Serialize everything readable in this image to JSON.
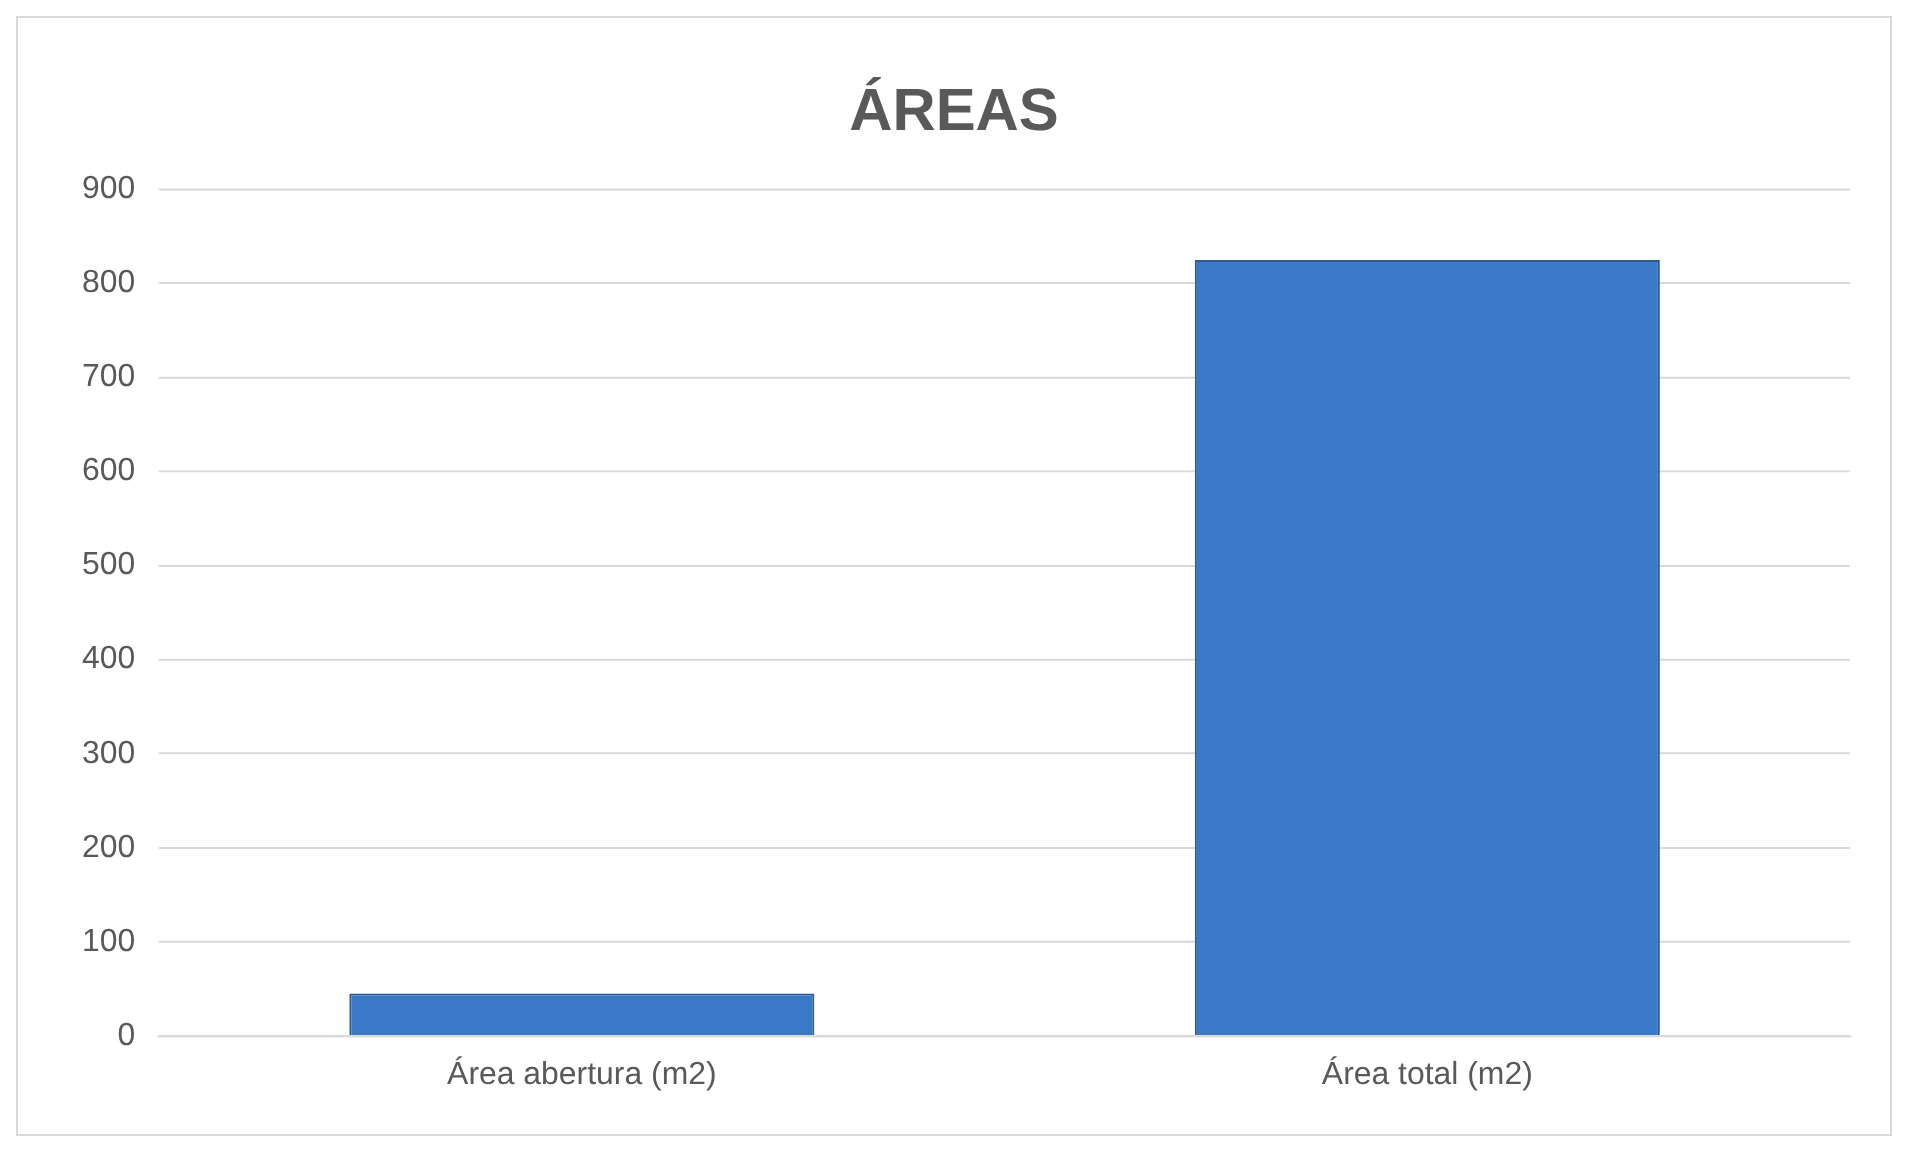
{
  "chart_data": {
    "type": "bar",
    "title": "ÁREAS",
    "categories": [
      "Área abertura (m2)",
      "Área total (m2)"
    ],
    "values": [
      45,
      825
    ],
    "color": "#3b78c8",
    "ylim": [
      0,
      900
    ],
    "yticks": [
      0,
      100,
      200,
      300,
      400,
      500,
      600,
      700,
      800,
      900
    ],
    "grid": "y",
    "legend": false
  }
}
